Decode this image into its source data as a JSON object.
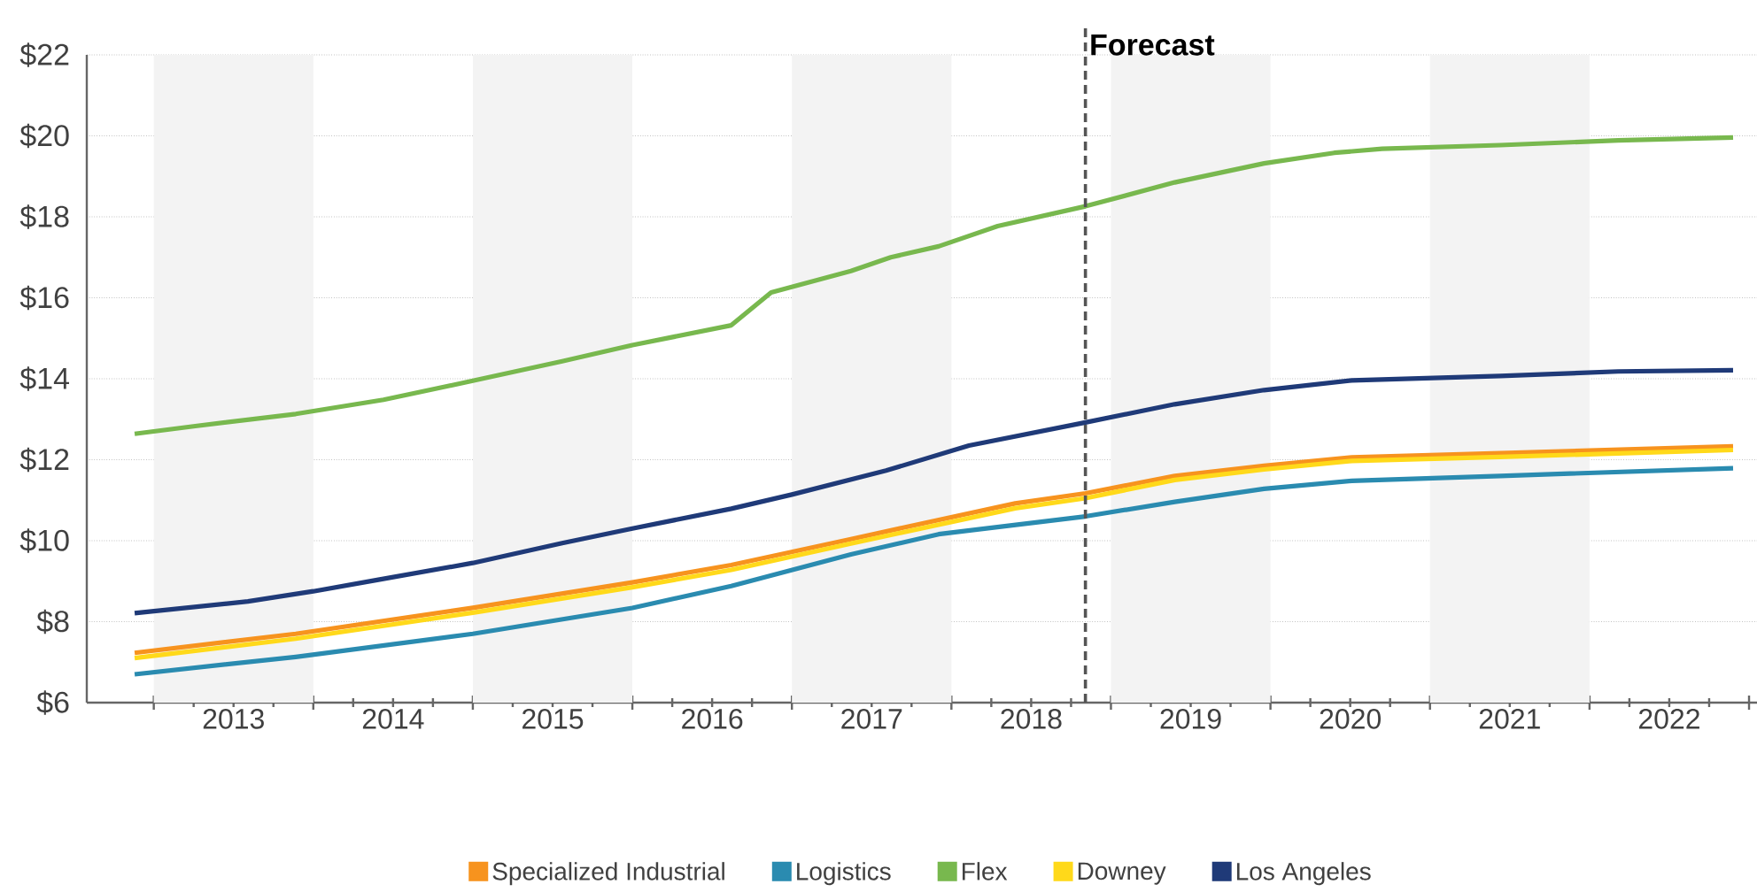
{
  "chart_data": {
    "type": "line",
    "xlim": [
      2012.58,
      2023.05
    ],
    "ylim": [
      6,
      22
    ],
    "xticks": [
      {
        "value": 2013,
        "label": null
      },
      {
        "value": 2013.5,
        "label": "2013"
      },
      {
        "value": 2014,
        "label": null
      },
      {
        "value": 2014.5,
        "label": "2014"
      },
      {
        "value": 2015,
        "label": null
      },
      {
        "value": 2015.5,
        "label": "2015"
      },
      {
        "value": 2016,
        "label": null
      },
      {
        "value": 2016.5,
        "label": "2016"
      },
      {
        "value": 2017,
        "label": null
      },
      {
        "value": 2017.5,
        "label": "2017"
      },
      {
        "value": 2018,
        "label": null
      },
      {
        "value": 2018.5,
        "label": "2018"
      },
      {
        "value": 2019,
        "label": null
      },
      {
        "value": 2019.5,
        "label": "2019"
      },
      {
        "value": 2020,
        "label": null
      },
      {
        "value": 2020.5,
        "label": "2020"
      },
      {
        "value": 2021,
        "label": null
      },
      {
        "value": 2021.5,
        "label": "2021"
      },
      {
        "value": 2022,
        "label": null
      },
      {
        "value": 2022.5,
        "label": "2022"
      },
      {
        "value": 2023,
        "label": null
      }
    ],
    "yticks": [
      {
        "value": 6,
        "label": "$6"
      },
      {
        "value": 8,
        "label": "$8"
      },
      {
        "value": 10,
        "label": "$10"
      },
      {
        "value": 12,
        "label": "$12"
      },
      {
        "value": 14,
        "label": "$14"
      },
      {
        "value": 16,
        "label": "$16"
      },
      {
        "value": 18,
        "label": "$18"
      },
      {
        "value": 20,
        "label": "$20"
      },
      {
        "value": 22,
        "label": "$22"
      }
    ],
    "grid": "y",
    "legend": "bottom",
    "marker": "none",
    "line_style": "solid",
    "bands": [
      {
        "axis": "x",
        "from": 2013,
        "to": 2014,
        "color": "#f3f3f3"
      },
      {
        "axis": "x",
        "from": 2015,
        "to": 2016,
        "color": "#f3f3f3"
      },
      {
        "axis": "x",
        "from": 2017,
        "to": 2018,
        "color": "#f3f3f3"
      },
      {
        "axis": "x",
        "from": 2019,
        "to": 2020,
        "color": "#f3f3f3"
      },
      {
        "axis": "x",
        "from": 2021,
        "to": 2022,
        "color": "#f3f3f3"
      }
    ],
    "ref_lines": [
      {
        "axis": "x",
        "value": 2018.84,
        "label": "Forecast",
        "color": "#555555",
        "line_style": "dashed"
      }
    ],
    "series": [
      {
        "name": "Specialized Industrial",
        "color": "#f7931e",
        "x": [
          2012.88,
          2013.89,
          2015.0,
          2016.0,
          2016.62,
          2017.37,
          2018.4,
          2018.84,
          2019.4,
          2019.96,
          2020.51,
          2021.44,
          2022.9
        ],
        "values": [
          7.23,
          7.7,
          8.34,
          8.97,
          9.4,
          10.04,
          10.92,
          11.17,
          11.6,
          11.85,
          12.06,
          12.16,
          12.33
        ]
      },
      {
        "name": "Logistics",
        "color": "#2a8bb0",
        "x": [
          2012.88,
          2013.89,
          2015.0,
          2016.0,
          2016.62,
          2017.37,
          2017.92,
          2018.84,
          2019.4,
          2019.96,
          2020.51,
          2021.44,
          2022.9
        ],
        "values": [
          6.7,
          7.13,
          7.7,
          8.34,
          8.88,
          9.66,
          10.16,
          10.6,
          10.96,
          11.28,
          11.48,
          11.6,
          11.79
        ]
      },
      {
        "name": "Flex",
        "color": "#78b84e",
        "x": [
          2012.88,
          2013.26,
          2013.89,
          2014.44,
          2015.0,
          2015.56,
          2016.0,
          2016.62,
          2016.87,
          2017.37,
          2017.62,
          2017.92,
          2018.29,
          2018.84,
          2019.4,
          2019.96,
          2020.4,
          2020.7,
          2021.44,
          2022.18,
          2022.9
        ],
        "values": [
          12.64,
          12.83,
          13.13,
          13.48,
          13.95,
          14.43,
          14.83,
          15.32,
          16.13,
          16.66,
          17.0,
          17.27,
          17.77,
          18.26,
          18.85,
          19.32,
          19.58,
          19.68,
          19.77,
          19.89,
          19.96
        ]
      },
      {
        "name": "Downey",
        "color": "#ffd91a",
        "x": [
          2012.88,
          2013.89,
          2015.0,
          2016.0,
          2016.62,
          2017.37,
          2018.4,
          2018.84,
          2019.4,
          2019.96,
          2020.51,
          2021.44,
          2022.9
        ],
        "values": [
          7.1,
          7.58,
          8.22,
          8.85,
          9.28,
          9.93,
          10.8,
          11.05,
          11.5,
          11.76,
          11.97,
          12.07,
          12.24
        ]
      },
      {
        "name": "Los Angeles",
        "color": "#1f3a78",
        "x": [
          2012.88,
          2013.59,
          2014.0,
          2014.4,
          2015.0,
          2015.56,
          2016.0,
          2016.62,
          2017.0,
          2017.59,
          2018.11,
          2018.84,
          2019.4,
          2019.96,
          2020.51,
          2021.44,
          2022.18,
          2022.9
        ],
        "values": [
          8.21,
          8.5,
          8.75,
          9.03,
          9.45,
          9.94,
          10.3,
          10.79,
          11.14,
          11.73,
          12.35,
          12.92,
          13.37,
          13.72,
          13.96,
          14.07,
          14.18,
          14.21
        ]
      }
    ]
  }
}
